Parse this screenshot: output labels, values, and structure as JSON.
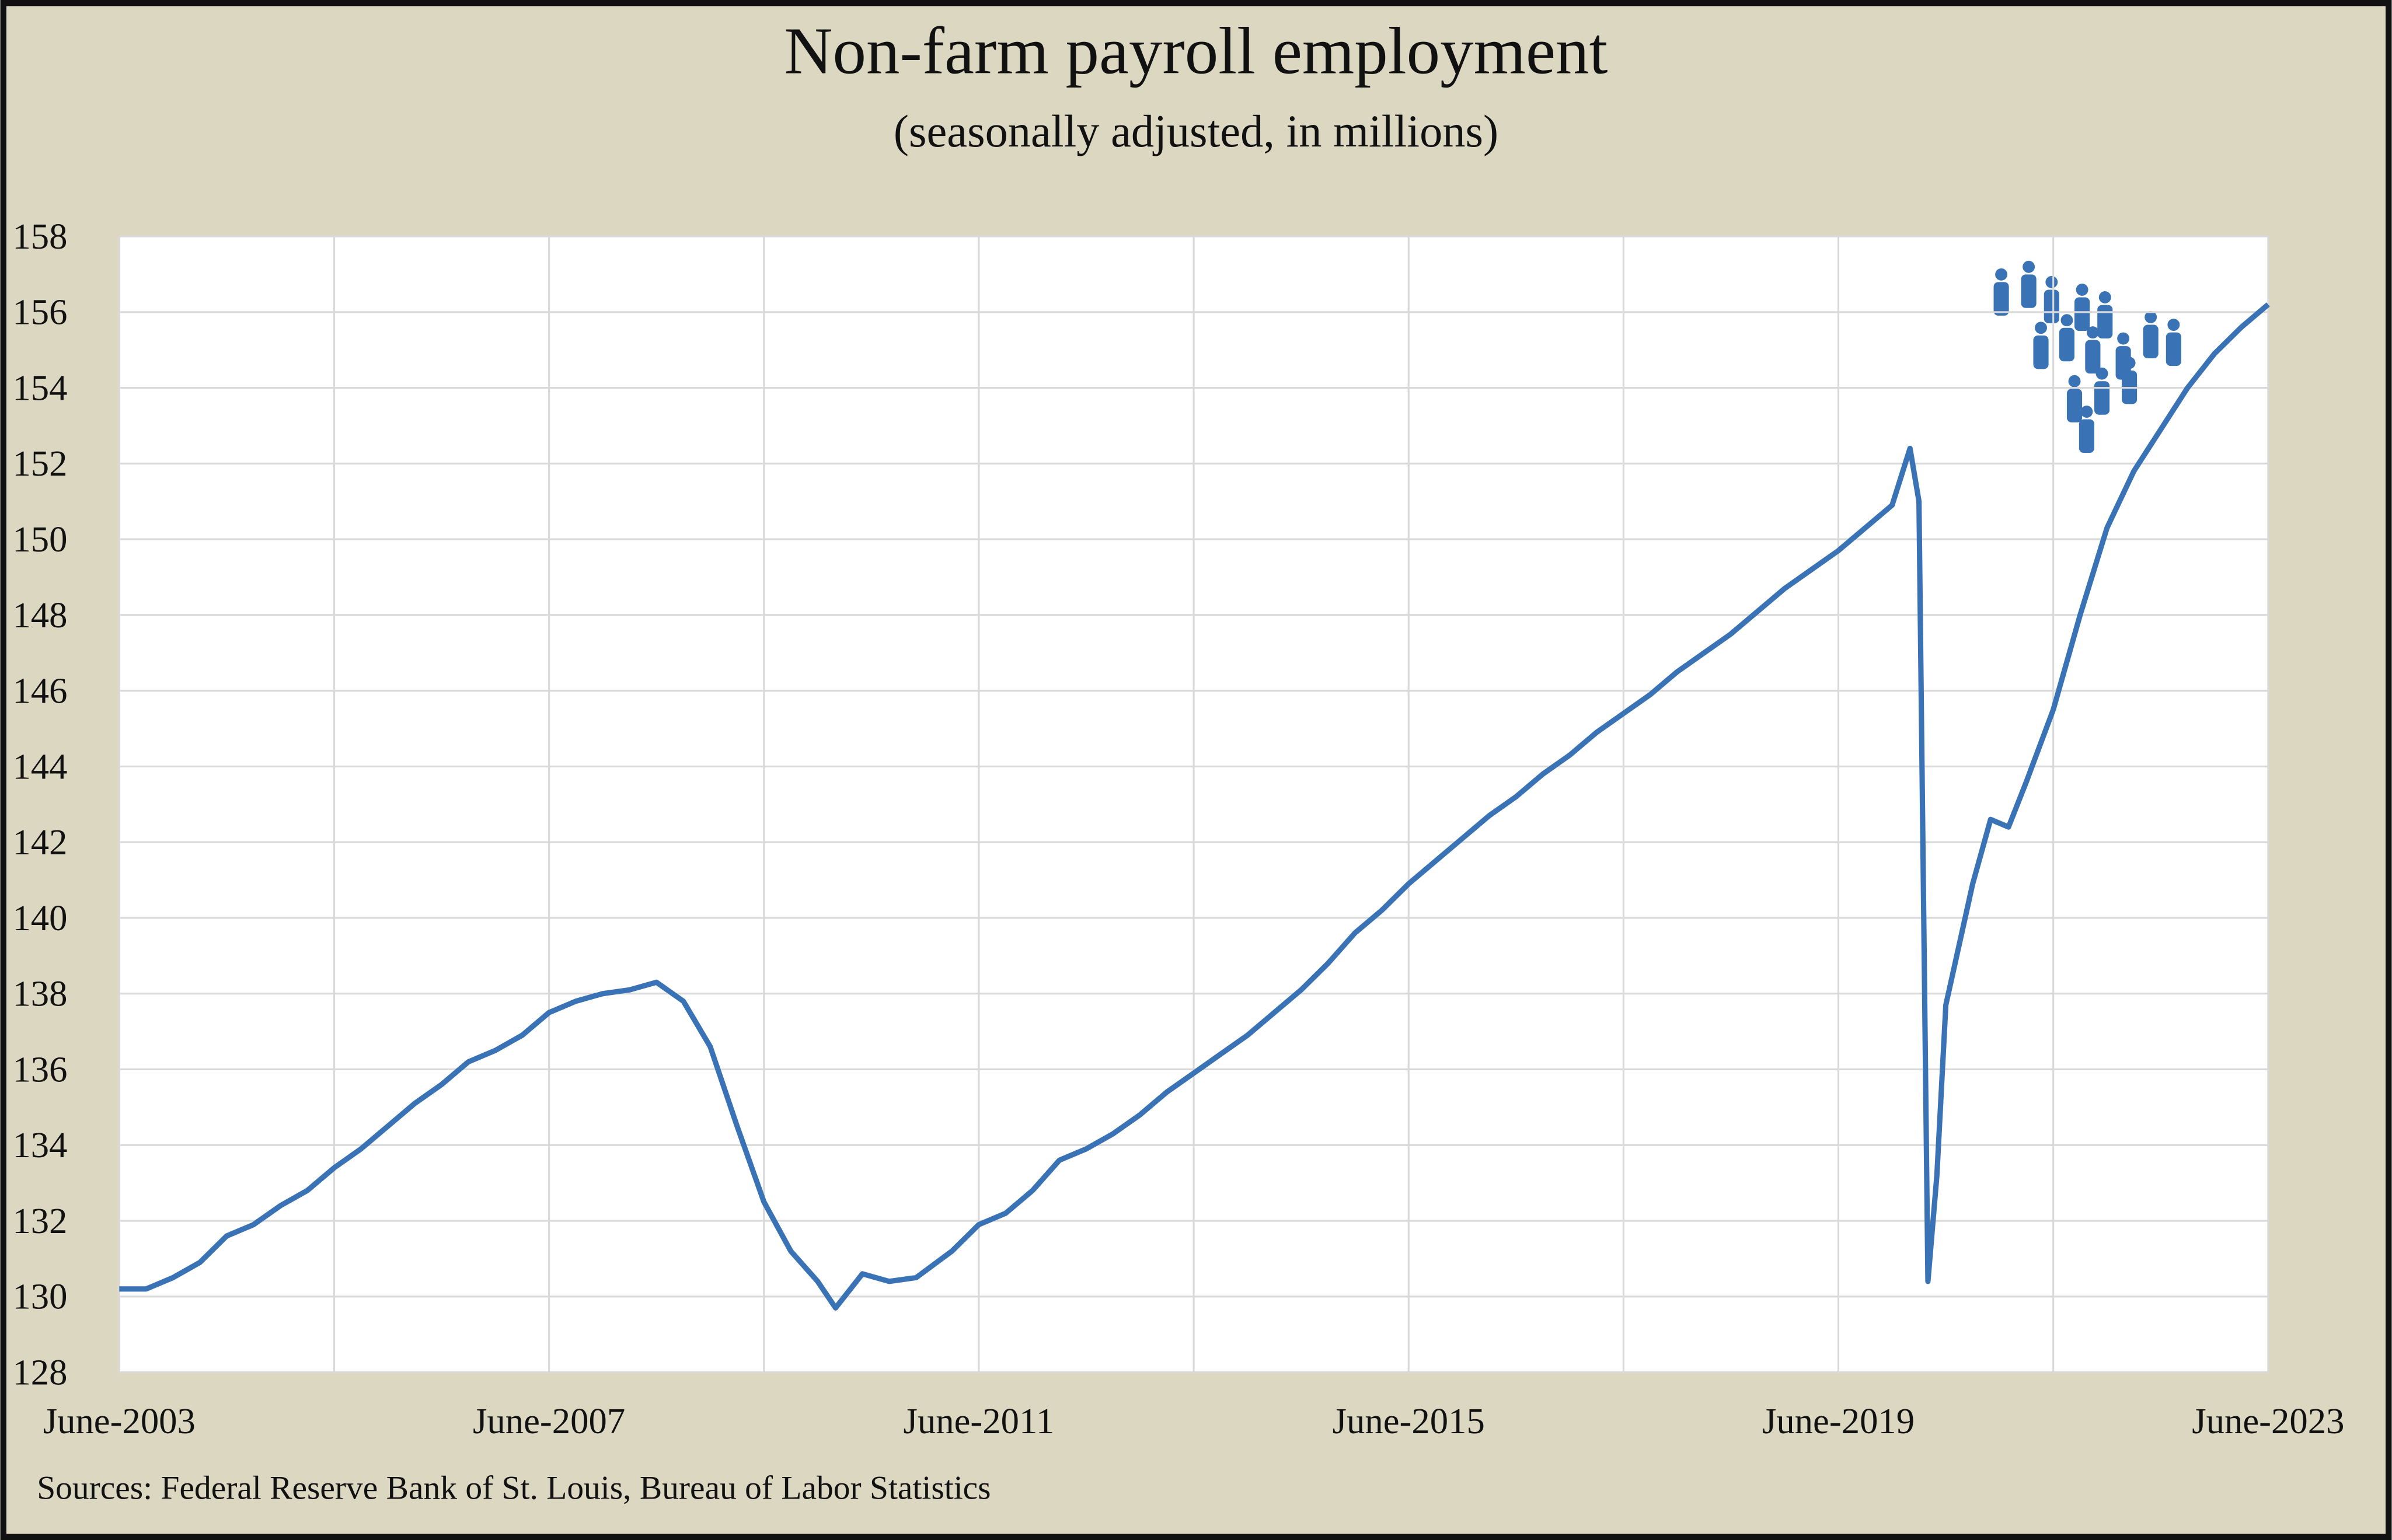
{
  "chart_data": {
    "type": "line",
    "title": "Non-farm payroll employment",
    "subtitle": "(seasonally adjusted, in millions)",
    "source": "Sources: Federal Reserve Bank of St. Louis, Bureau of Labor Statistics",
    "x": [
      "2003-06",
      "2003-09",
      "2003-12",
      "2004-03",
      "2004-06",
      "2004-09",
      "2004-12",
      "2005-03",
      "2005-06",
      "2005-09",
      "2005-12",
      "2006-03",
      "2006-06",
      "2006-09",
      "2006-12",
      "2007-03",
      "2007-06",
      "2007-09",
      "2007-12",
      "2008-03",
      "2008-06",
      "2008-09",
      "2008-12",
      "2009-03",
      "2009-06",
      "2009-09",
      "2009-12",
      "2010-02",
      "2010-05",
      "2010-08",
      "2010-11",
      "2011-03",
      "2011-06",
      "2011-09",
      "2011-12",
      "2012-03",
      "2012-06",
      "2012-09",
      "2012-12",
      "2013-03",
      "2013-06",
      "2013-09",
      "2013-12",
      "2014-03",
      "2014-06",
      "2014-09",
      "2014-12",
      "2015-03",
      "2015-06",
      "2015-09",
      "2015-12",
      "2016-03",
      "2016-06",
      "2016-09",
      "2016-12",
      "2017-03",
      "2017-06",
      "2017-09",
      "2017-12",
      "2018-03",
      "2018-06",
      "2018-09",
      "2018-12",
      "2019-03",
      "2019-06",
      "2019-09",
      "2019-12",
      "2020-02",
      "2020-03",
      "2020-04",
      "2020-05",
      "2020-06",
      "2020-09",
      "2020-11",
      "2021-01",
      "2021-03",
      "2021-06",
      "2021-09",
      "2021-12",
      "2022-03",
      "2022-06",
      "2022-09",
      "2022-12",
      "2023-03",
      "2023-06"
    ],
    "series": [
      {
        "name": "Non-farm payroll employment",
        "color": "#3a73b5",
        "values": [
          130.2,
          130.2,
          130.5,
          130.9,
          131.6,
          131.9,
          132.4,
          132.8,
          133.4,
          133.9,
          134.5,
          135.1,
          135.6,
          136.2,
          136.5,
          136.9,
          137.5,
          137.8,
          138.0,
          138.1,
          138.3,
          137.8,
          136.6,
          134.5,
          132.5,
          131.2,
          130.4,
          129.7,
          130.6,
          130.4,
          130.5,
          131.2,
          131.9,
          132.2,
          132.8,
          133.6,
          133.9,
          134.3,
          134.8,
          135.4,
          135.9,
          136.4,
          136.9,
          137.5,
          138.1,
          138.8,
          139.6,
          140.2,
          140.9,
          141.5,
          142.1,
          142.7,
          143.2,
          143.8,
          144.3,
          144.9,
          145.4,
          145.9,
          146.5,
          147.0,
          147.5,
          148.1,
          148.7,
          149.2,
          149.7,
          150.3,
          150.9,
          152.4,
          151.0,
          130.4,
          133.2,
          137.7,
          140.9,
          142.6,
          142.4,
          143.6,
          145.5,
          148.0,
          150.3,
          151.8,
          152.9,
          154.0,
          154.9,
          155.6,
          156.2
        ]
      }
    ],
    "xlim": [
      "2003-06",
      "2023-06"
    ],
    "xticks": [
      {
        "value": "2003-06",
        "label": "June-2003"
      },
      {
        "value": "2007-06",
        "label": "June-2007"
      },
      {
        "value": "2011-06",
        "label": "June-2011"
      },
      {
        "value": "2015-06",
        "label": "June-2015"
      },
      {
        "value": "2019-06",
        "label": "June-2019"
      },
      {
        "value": "2023-06",
        "label": "June-2023"
      }
    ],
    "x_minor_grid": [
      "2005-06",
      "2009-06",
      "2013-06",
      "2017-06",
      "2021-06"
    ],
    "ylim": [
      128,
      158
    ],
    "yticks": [
      128,
      130,
      132,
      134,
      136,
      138,
      140,
      142,
      144,
      146,
      148,
      150,
      152,
      154,
      156,
      158
    ],
    "grid": true
  }
}
